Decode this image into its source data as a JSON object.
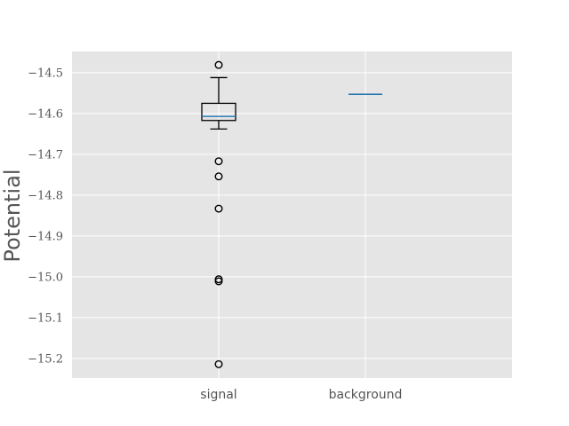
{
  "chart_data": {
    "type": "box",
    "title": "",
    "xlabel": "",
    "ylabel": "Potential",
    "ylim": [
      -15.248,
      -14.448
    ],
    "yticks": [
      -14.5,
      -14.6,
      -14.7,
      -14.8,
      -14.9,
      -15.0,
      -15.1,
      -15.2
    ],
    "ytick_labels": [
      "−14.5",
      "−14.6",
      "−14.7",
      "−14.8",
      "−14.9",
      "−15.0",
      "−15.1",
      "−15.2"
    ],
    "grid": true,
    "categories": [
      "signal",
      "background"
    ],
    "boxes": [
      {
        "name": "signal",
        "whisker_low": -14.638,
        "q1": -14.617,
        "median": -14.607,
        "q3": -14.575,
        "whisker_high": -14.512,
        "fliers": [
          -14.481,
          -14.717,
          -14.754,
          -14.833,
          -15.006,
          -15.011,
          -15.214
        ]
      },
      {
        "name": "background",
        "whisker_low": -14.553,
        "q1": -14.553,
        "median": -14.553,
        "q3": -14.553,
        "whisker_high": -14.553,
        "fliers": []
      }
    ],
    "colors": {
      "axes_bg": "#e5e5e5",
      "grid": "#ffffff",
      "box": "#000000",
      "median": "#1f77b4",
      "text": "#555555"
    }
  }
}
